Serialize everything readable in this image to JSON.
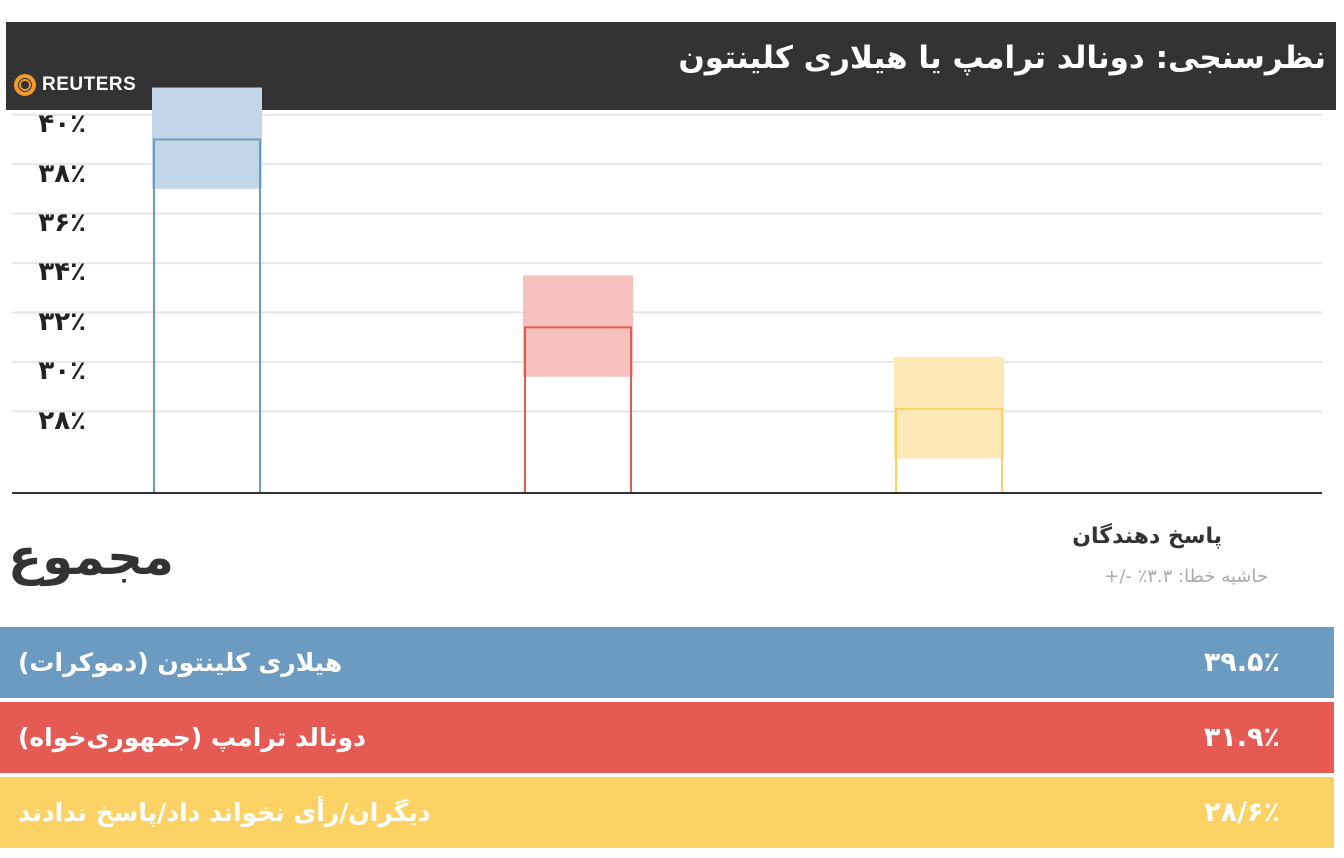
{
  "header": {
    "title": "نظرسنجی: دونالد ترامپ یا هیلاری کلینتون",
    "logo_text": "REUTERS",
    "logo_icon": "reuters-dot-ring-icon",
    "background": "#333333"
  },
  "subtitle": "مجموع",
  "respondents_label": "پاسخ دهندگان",
  "margin_label": "حاشیه خطا: ۳.۳٪ -/+",
  "legend": [
    {
      "name": "هیلاری کلینتون (دموکرات)",
      "value": "۳۹.۵٪",
      "color": "#6c9bc2"
    },
    {
      "name": "دونالد ترامپ (جمهوری‌خواه)",
      "value": "۳۱.۹٪",
      "color": "#e55a52"
    },
    {
      "name": "دیگران/رأی نخواند داد/پاسخ ندادند",
      "value": "۲۸/۶٪",
      "color": "#fdd264"
    }
  ],
  "chart_data": {
    "type": "bar",
    "title": "نظرسنجی: دونالد ترامپ یا هیلاری کلینتون",
    "subtitle": "مجموع",
    "categories": [
      "هیلاری کلینتون (دموکرات)",
      "دونالد ترامپ (جمهوری‌خواه)",
      "دیگران/رأی نخواند داد/پاسخ ندادند"
    ],
    "values": [
      39.5,
      31.9,
      28.6
    ],
    "error_margin": 3.3,
    "colors": [
      "#6c9bc2",
      "#e55a52",
      "#fdd264"
    ],
    "error_band_colors": [
      "#c3d6e7",
      "#f6c0bd",
      "#fde9b5"
    ],
    "ytick_labels": [
      "۴۰٪",
      "۳۸٪",
      "۳۶٪",
      "۳۴٪",
      "۳۲٪",
      "۳۰٪",
      "۲۸٪"
    ],
    "ytick_values": [
      40,
      38,
      36,
      34,
      32,
      30,
      28
    ],
    "ylim": [
      25.2,
      41.5
    ],
    "grid": true,
    "legend_placement": "bottom"
  }
}
